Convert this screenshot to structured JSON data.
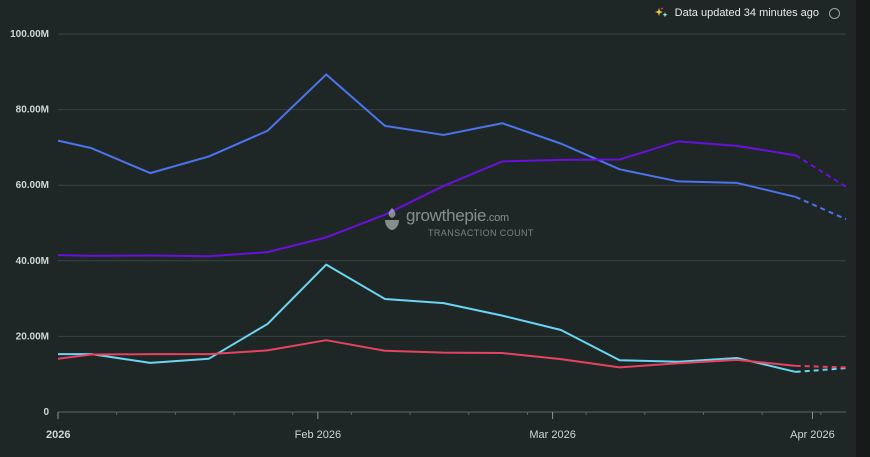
{
  "status": {
    "text": "Data updated 34 minutes ago",
    "icon": "sparkle-icon",
    "info_icon": "info-circle-icon"
  },
  "watermark": {
    "brand": "growthepie",
    "brand_suffix": ".com",
    "subtitle": "TRANSACTION COUNT"
  },
  "chart_data": {
    "type": "line",
    "title": "",
    "xlabel": "",
    "ylabel": "",
    "ylim": [
      0,
      100000000
    ],
    "y_ticks": [
      {
        "value": 0,
        "label": "0"
      },
      {
        "value": 20000000,
        "label": "20.00M"
      },
      {
        "value": 40000000,
        "label": "40.00M"
      },
      {
        "value": 60000000,
        "label": "60.00M"
      },
      {
        "value": 80000000,
        "label": "80.00M"
      },
      {
        "value": 100000000,
        "label": "100.00M"
      }
    ],
    "x_ticks": [
      {
        "date": "2026-01-01",
        "label": "2026"
      },
      {
        "date": "2026-02-01",
        "label": "Feb 2026"
      },
      {
        "date": "2026-03-01",
        "label": "Mar 2026"
      },
      {
        "date": "2026-04-01",
        "label": "Apr 2026"
      }
    ],
    "x_range": [
      "2026-01-01",
      "2026-04-05"
    ],
    "grid": true,
    "legend": "none",
    "x": [
      "2026-01-01",
      "2026-01-05",
      "2026-01-12",
      "2026-01-19",
      "2026-01-26",
      "2026-02-02",
      "2026-02-09",
      "2026-02-16",
      "2026-02-23",
      "2026-03-02",
      "2026-03-09",
      "2026-03-16",
      "2026-03-23",
      "2026-03-30",
      "2026-04-05"
    ],
    "projected_from_index": 13,
    "series": [
      {
        "color": "#4b74ee",
        "values": [
          71800000,
          69800000,
          63200000,
          67600000,
          74400000,
          89300000,
          75700000,
          73300000,
          76400000,
          71000000,
          64200000,
          61000000,
          60600000,
          56900000,
          51000000
        ]
      },
      {
        "color": "#6a0fdc",
        "values": [
          41500000,
          41300000,
          41400000,
          41200000,
          42300000,
          46200000,
          52200000,
          59800000,
          66300000,
          66700000,
          66800000,
          71600000,
          70400000,
          67900000,
          59600000
        ]
      },
      {
        "color": "#6ad6f3",
        "values": [
          15300000,
          15300000,
          13000000,
          14100000,
          23300000,
          39000000,
          29900000,
          28800000,
          25500000,
          21700000,
          13700000,
          13300000,
          14300000,
          10600000,
          11600000
        ]
      },
      {
        "color": "#e54360",
        "values": [
          14100000,
          15200000,
          15300000,
          15300000,
          16300000,
          19000000,
          16200000,
          15700000,
          15600000,
          14000000,
          11800000,
          12900000,
          13800000,
          12200000,
          11800000
        ]
      }
    ]
  }
}
